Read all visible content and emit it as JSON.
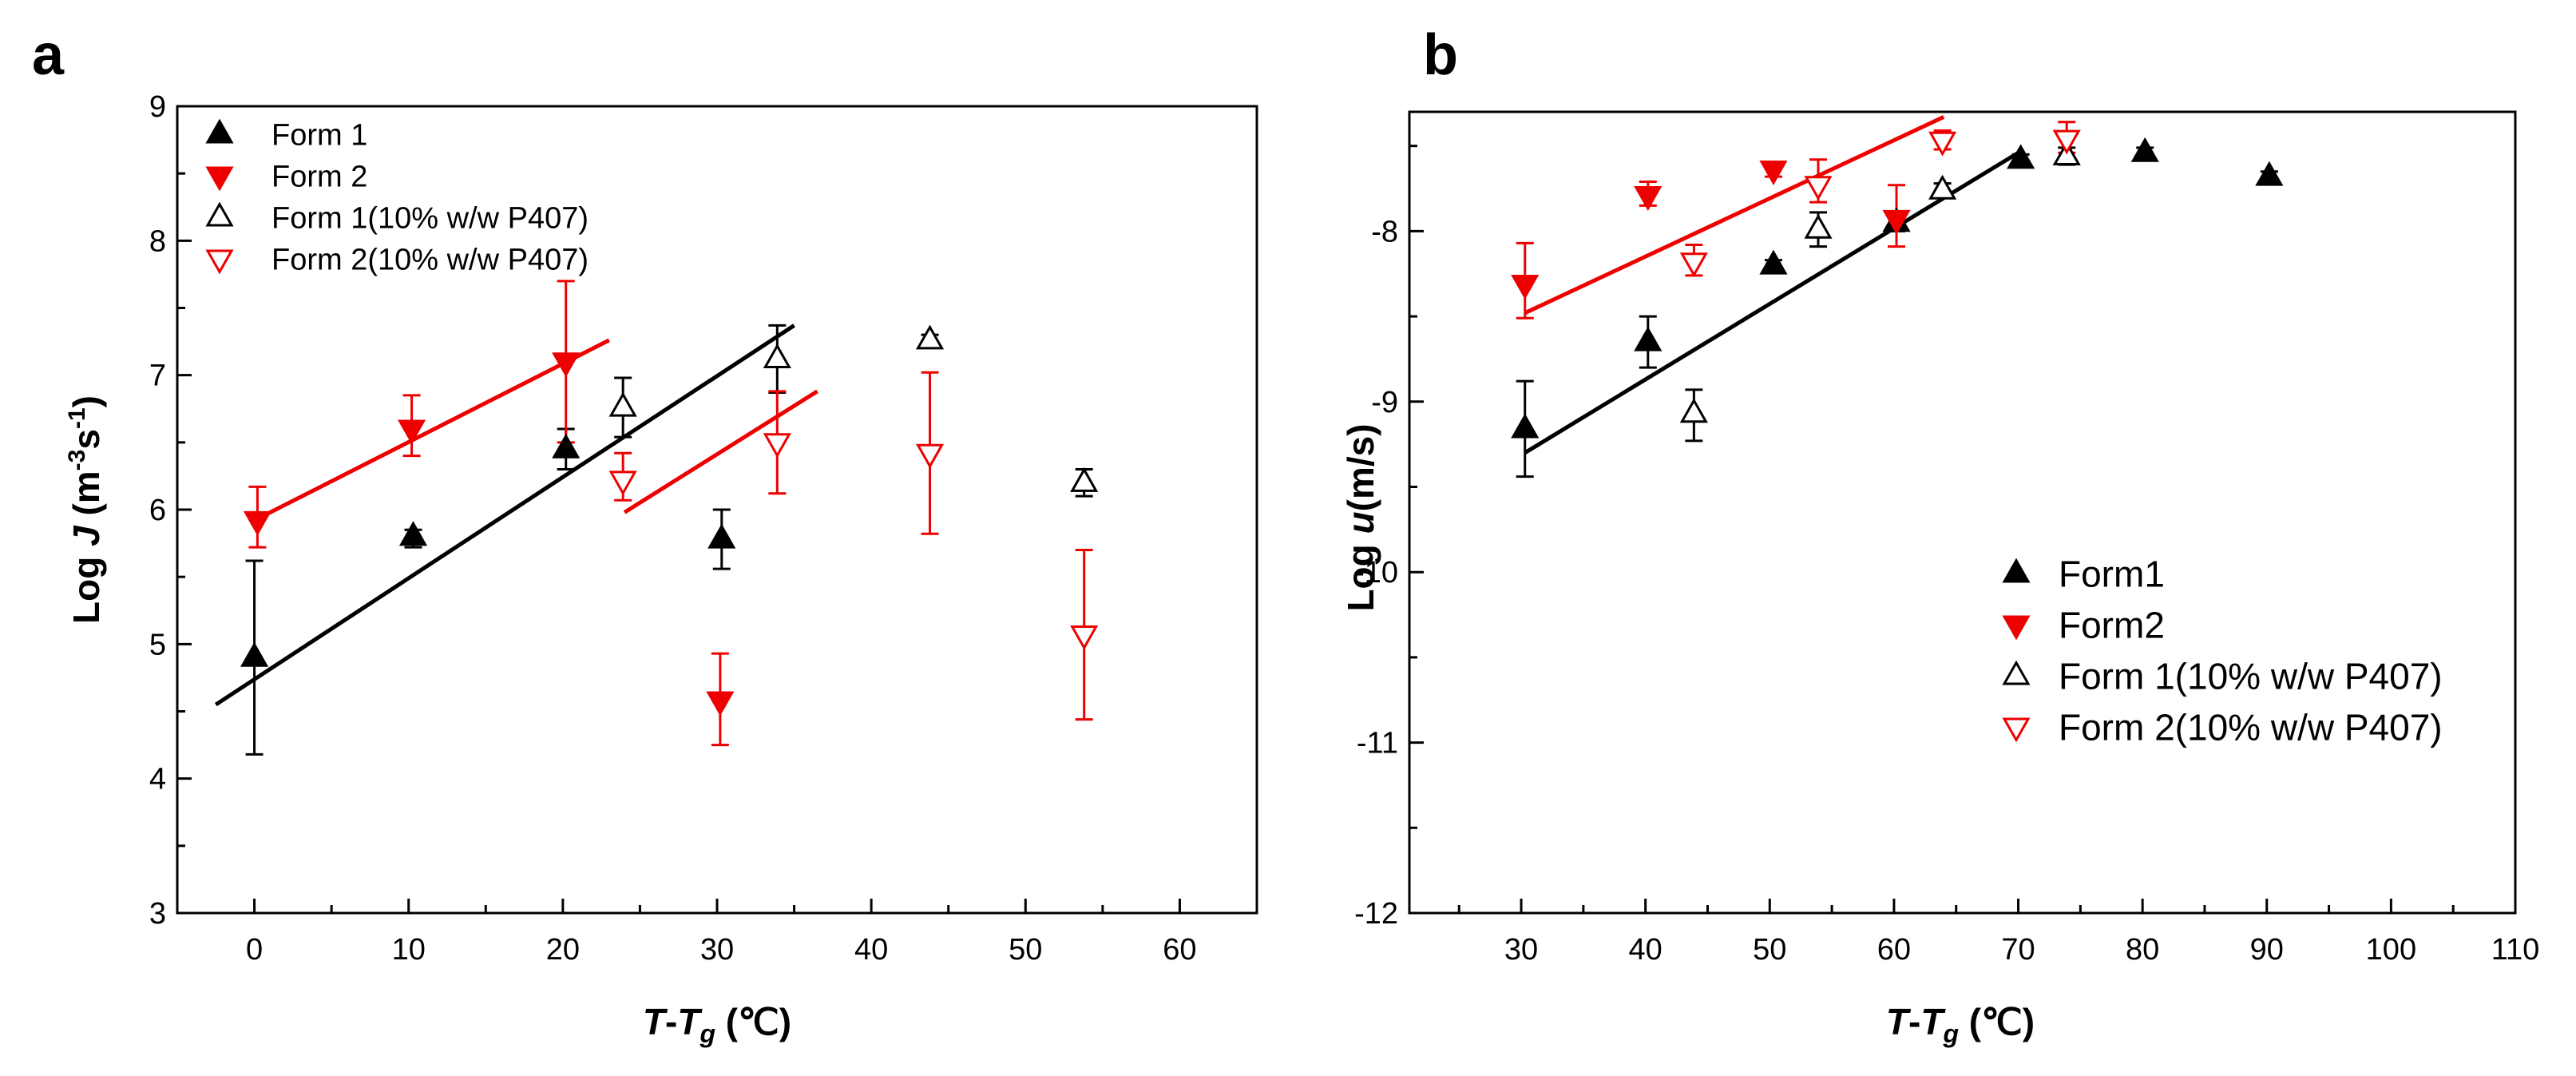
{
  "colors": {
    "form1": "#000000",
    "form2": "#ee0000",
    "background": "#ffffff"
  },
  "chart_data": [
    {
      "type": "scatter",
      "panel_label": "a",
      "xlabel_parts": {
        "t": "T",
        "dash": "-",
        "tg": "T",
        "sub": "g",
        "unit": " (℃)"
      },
      "ylabel_parts": {
        "log": "Log ",
        "var": "J",
        "unit_open": " (m",
        "sup1": "-3",
        "s": "s",
        "sup2": "-1",
        "close": ")"
      },
      "xlim": [
        -5,
        65
      ],
      "ylim": [
        3,
        9
      ],
      "xticks": [
        0,
        10,
        20,
        30,
        40,
        50,
        60
      ],
      "yticks": [
        3,
        4,
        5,
        6,
        7,
        8,
        9
      ],
      "legend": {
        "position": "top-left",
        "entries": [
          {
            "label": "Form 1",
            "series": "form1"
          },
          {
            "label": "Form 2",
            "series": "form2"
          },
          {
            "label": "Form 1(10% w/w P407)",
            "series": "form1_p407"
          },
          {
            "label": "Form 2(10% w/w P407)",
            "series": "form2_p407"
          }
        ]
      },
      "series": [
        {
          "id": "form1",
          "name": "Form 1",
          "marker": "triangle-up",
          "filled": true,
          "color": "#000000",
          "x": [
            0,
            10.3,
            20.2,
            30.3
          ],
          "y": [
            4.9,
            5.8,
            6.45,
            5.78
          ],
          "err_plus": [
            0.72,
            0.05,
            0.15,
            0.22
          ],
          "err_minus": [
            0.72,
            0.08,
            0.15,
            0.22
          ]
        },
        {
          "id": "form2",
          "name": "Form 2",
          "marker": "triangle-down",
          "filled": true,
          "color": "#ee0000",
          "x": [
            0.2,
            10.2,
            20.2,
            30.2
          ],
          "y": [
            5.92,
            6.6,
            7.1,
            4.58
          ],
          "err_plus": [
            0.25,
            0.25,
            0.6,
            0.35
          ],
          "err_minus": [
            0.2,
            0.2,
            0.6,
            0.33
          ]
        },
        {
          "id": "form1_p407",
          "name": "Form 1(10% w/w P407)",
          "marker": "triangle-up",
          "filled": false,
          "color": "#000000",
          "x": [
            23.9,
            33.9,
            43.8,
            53.8
          ],
          "y": [
            6.76,
            7.12,
            7.26,
            6.2
          ],
          "err_plus": [
            0.22,
            0.25,
            0.04,
            0.1
          ],
          "err_minus": [
            0.22,
            0.25,
            0.04,
            0.1
          ]
        },
        {
          "id": "form2_p407",
          "name": "Form 2(10% w/w P407)",
          "marker": "triangle-down",
          "filled": false,
          "color": "#ee0000",
          "x": [
            23.9,
            33.9,
            43.8,
            53.8
          ],
          "y": [
            6.22,
            6.5,
            6.42,
            5.07
          ],
          "err_plus": [
            0.2,
            0.38,
            0.6,
            0.63
          ],
          "err_minus": [
            0.15,
            0.38,
            0.6,
            0.63
          ]
        }
      ],
      "fit_lines": [
        {
          "color": "#000000",
          "x": [
            -2.5,
            35
          ],
          "y": [
            4.55,
            7.37
          ]
        },
        {
          "color": "#ee0000",
          "x": [
            0,
            23
          ],
          "y": [
            5.92,
            7.26
          ]
        },
        {
          "color": "#ee0000",
          "x": [
            24,
            36.5
          ],
          "y": [
            5.98,
            6.88
          ]
        }
      ]
    },
    {
      "type": "scatter",
      "panel_label": "b",
      "xlabel_parts": {
        "t": "T",
        "dash": "-",
        "tg": "T",
        "sub": "g",
        "unit": " (℃)"
      },
      "ylabel_parts": {
        "log": "Log ",
        "var": "u",
        "unit": "(m/s)"
      },
      "xlim": [
        21,
        110
      ],
      "ylim": [
        -12,
        -7.3
      ],
      "xticks": [
        30,
        40,
        50,
        60,
        70,
        80,
        90,
        100,
        110
      ],
      "yticks": [
        -12,
        -11,
        -10,
        -9,
        -8
      ],
      "legend": {
        "position": "bottom-right",
        "entries": [
          {
            "label": "Form1",
            "series": "form1"
          },
          {
            "label": "Form2",
            "series": "form2"
          },
          {
            "label": "Form 1(10% w/w P407)",
            "series": "form1_p407"
          },
          {
            "label": "Form 2(10% w/w P407)",
            "series": "form2_p407"
          }
        ]
      },
      "series": [
        {
          "id": "form1",
          "name": "Form1",
          "marker": "triangle-up",
          "filled": true,
          "color": "#000000",
          "x": [
            30.3,
            40.2,
            50.3,
            60.2,
            70.2,
            80.2,
            90.2
          ],
          "y": [
            -9.16,
            -8.65,
            -8.2,
            -7.95,
            -7.58,
            -7.54,
            -7.68
          ],
          "err_plus": [
            0.28,
            0.15,
            0.03,
            0.05,
            0.03,
            0.03,
            0.03
          ],
          "err_minus": [
            0.28,
            0.15,
            0.03,
            0.05,
            0.03,
            0.03,
            0.03
          ]
        },
        {
          "id": "form2",
          "name": "Form2",
          "marker": "triangle-down",
          "filled": true,
          "color": "#ee0000",
          "x": [
            30.3,
            40.2,
            50.3,
            60.2
          ],
          "y": [
            -8.31,
            -7.79,
            -7.64,
            -7.93
          ],
          "err_plus": [
            0.24,
            0.08,
            0.04,
            0.2
          ],
          "err_minus": [
            0.2,
            0.06,
            0.04,
            0.16
          ]
        },
        {
          "id": "form1_p407",
          "name": "Form 1(10% w/w P407)",
          "marker": "triangle-up",
          "filled": false,
          "color": "#000000",
          "x": [
            43.9,
            53.9,
            63.9,
            73.9
          ],
          "y": [
            -9.07,
            -7.99,
            -7.76,
            -7.56
          ],
          "err_plus": [
            0.14,
            0.1,
            0.04,
            0.05
          ],
          "err_minus": [
            0.16,
            0.1,
            0.04,
            0.05
          ]
        },
        {
          "id": "form2_p407",
          "name": "Form 2(10% w/w P407)",
          "marker": "triangle-down",
          "filled": false,
          "color": "#ee0000",
          "x": [
            43.9,
            53.9,
            63.9,
            73.9
          ],
          "y": [
            -8.18,
            -7.73,
            -7.47,
            -7.46
          ],
          "err_plus": [
            0.1,
            0.15,
            0.06,
            0.1
          ],
          "err_minus": [
            0.08,
            0.1,
            0.05,
            0.08
          ]
        }
      ],
      "fit_lines": [
        {
          "color": "#000000",
          "x": [
            30.3,
            70
          ],
          "y": [
            -9.3,
            -7.54
          ]
        },
        {
          "color": "#ee0000",
          "x": [
            30.3,
            64
          ],
          "y": [
            -8.48,
            -7.33
          ]
        }
      ]
    }
  ]
}
